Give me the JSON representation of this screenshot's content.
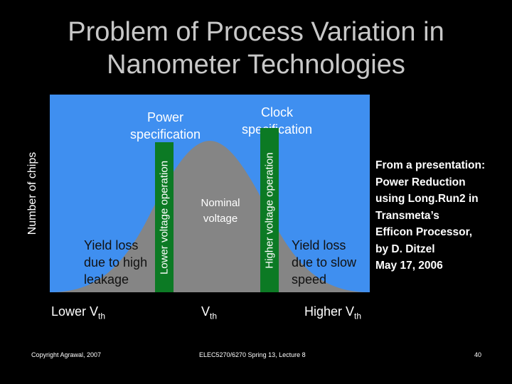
{
  "slide": {
    "title_lines": [
      "Problem of Process Variation in",
      "Nanometer Technologies"
    ]
  },
  "diagram": {
    "y_axis_label": "Number of chips",
    "power_spec_lines": [
      "Power",
      "specification"
    ],
    "clock_spec_lines": [
      "Clock",
      "specification"
    ],
    "nominal_lines": [
      "Nominal",
      "voltage"
    ],
    "yield_left_lines": [
      "Yield loss",
      "due to high",
      "leakage"
    ],
    "yield_right_lines": [
      "Yield loss",
      "due to slow",
      "speed"
    ],
    "lower_bar_label": "Lower voltage operation",
    "higher_bar_label": "Higher voltage operation",
    "x_labels": {
      "lower": {
        "text": "Lower V",
        "sub": "th"
      },
      "mid": {
        "text": "V",
        "sub": "th"
      },
      "higher": {
        "text": "Higher V",
        "sub": "th"
      }
    },
    "colors": {
      "panel": "#3f8ff0",
      "curve": "#858585",
      "bar": "#0c7a24"
    }
  },
  "source_note_lines": [
    "From a presentation:",
    "Power Reduction",
    "using Long.Run2 in",
    "Transmeta’s",
    "Efficon Processor,",
    "by D. Ditzel",
    "May 17, 2006"
  ],
  "footer": {
    "copyright": "Copyright Agrawal, 2007",
    "course": "ELEC5270/6270 Spring 13, Lecture 8",
    "page": "40"
  }
}
